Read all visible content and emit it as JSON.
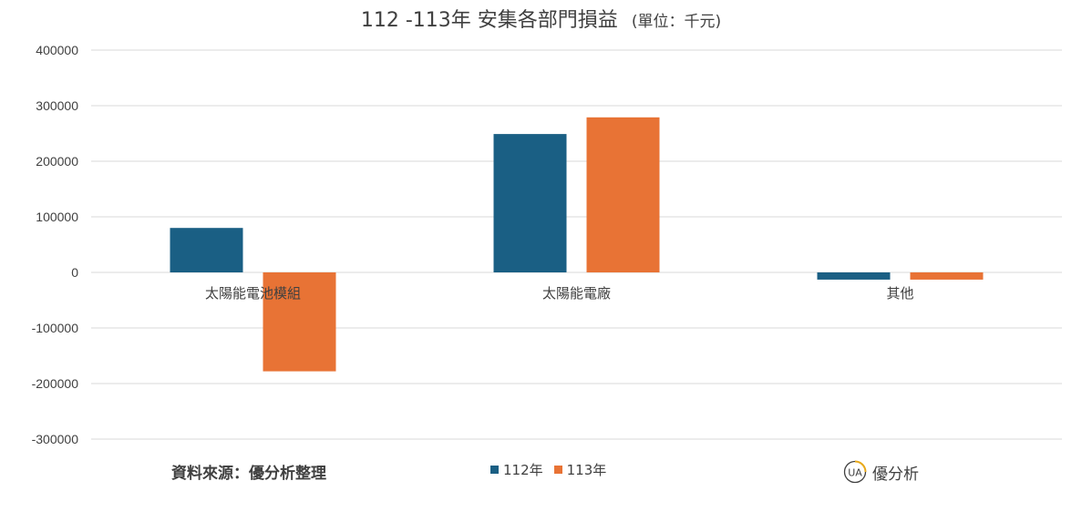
{
  "title": "112 -113年 安集各部門損益",
  "title_unit": "(單位：千元)",
  "source_label": "資料來源：優分析整理",
  "brand": {
    "logo_text": "UA",
    "name": "優分析"
  },
  "colors": {
    "series_112": "#1a5f84",
    "series_113": "#e87335",
    "grid": "#d9d9d9",
    "axis_text": "#404040"
  },
  "chart_data": {
    "type": "bar",
    "categories": [
      "太陽能電池模組",
      "太陽能電廠",
      "其他"
    ],
    "series": [
      {
        "name": "112年",
        "values": [
          80000,
          249000,
          -13000
        ]
      },
      {
        "name": "113年",
        "values": [
          -178000,
          279000,
          -13000
        ]
      }
    ],
    "yticks": [
      400000,
      300000,
      200000,
      100000,
      0,
      -100000,
      -200000,
      -300000
    ],
    "ylim": [
      -300000,
      400000
    ],
    "grid": true,
    "legend_position": "bottom"
  }
}
